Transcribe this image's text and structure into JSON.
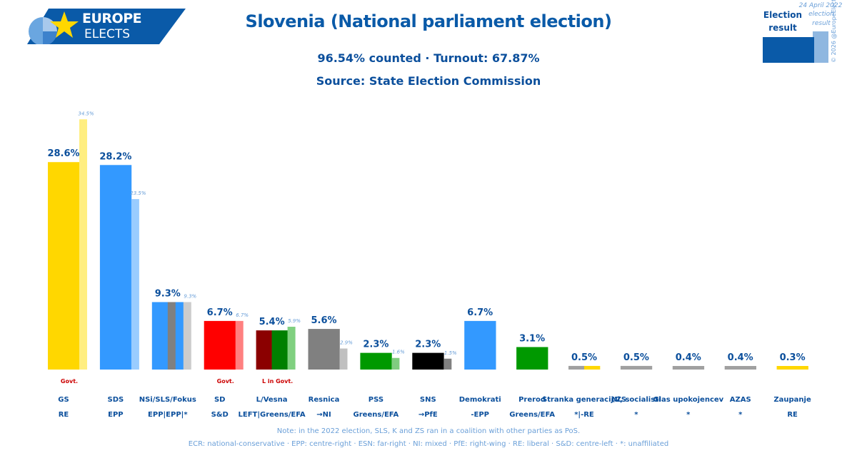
{
  "logo": {
    "line1": "EUROPE",
    "line2": "ELECTS"
  },
  "header": {
    "title": "Slovenia (National parliament election)",
    "subtitle1": "96.54% counted · Turnout: 67.87%",
    "subtitle2": "Source: State Election Commission"
  },
  "legend": {
    "date": "24 April 2022",
    "current_label_1": "Election",
    "current_label_2": "result",
    "previous_label_1": "election",
    "previous_label_2": "result",
    "copyright": "© 2026 @EuropeElects",
    "colors": {
      "current": "#0a5aa8",
      "previous": "#8fb7e0"
    }
  },
  "chart_data": {
    "type": "bar",
    "ylim": [
      0,
      36
    ],
    "categories": [
      "GS",
      "SDS",
      "NSi/SLS/Fokus",
      "SD",
      "L/Vesna",
      "Resnica",
      "PSS",
      "SNS",
      "Demokrati",
      "Prerod",
      "Stranka generacij/ZS",
      "Ni, socialisti",
      "Glas upokojencev",
      "AZAS",
      "Zaupanje"
    ],
    "groups": [
      "RE",
      "EPP",
      "EPP|EPP|*",
      "S&D",
      "LEFT|Greens/EFA",
      "→NI",
      "Greens/EFA",
      "→PfE",
      "-EPP",
      "Greens/EFA",
      "*|-RE",
      "*",
      "*",
      "*",
      "RE"
    ],
    "series": [
      {
        "values": [
          28.6,
          28.2,
          9.3,
          6.7,
          5.4,
          5.6,
          2.3,
          2.3,
          6.7,
          3.1,
          0.5,
          0.5,
          0.4,
          0.4,
          0.3
        ],
        "labels": [
          "28.6%",
          "28.2%",
          "9.3%",
          "6.7%",
          "5.4%",
          "5.6%",
          "2.3%",
          "2.3%",
          "6.7%",
          "3.1%",
          "0.5%",
          "0.5%",
          "0.4%",
          "0.4%",
          "0.3%"
        ]
      },
      {
        "values": [
          34.5,
          23.5,
          9.3,
          6.7,
          5.9,
          2.9,
          1.6,
          1.5,
          null,
          null,
          null,
          null,
          null,
          null,
          null
        ],
        "labels": [
          "34.5%",
          "23.5%",
          "9.3%",
          "6.7%",
          "5.9%",
          "2.9%",
          "1.6%",
          "1.5%",
          "",
          "",
          "",
          "",
          "",
          "",
          ""
        ]
      }
    ],
    "colors": [
      [
        "#ffd700"
      ],
      [
        "#3399ff"
      ],
      [
        "#3399ff",
        "#3399ff",
        "#808080",
        "#3399ff"
      ],
      [
        "#ff0000"
      ],
      [
        "#8b0000",
        "#008000"
      ],
      [
        "#808080"
      ],
      [
        "#009900"
      ],
      [
        "#000000"
      ],
      [
        "#3399ff"
      ],
      [
        "#009900"
      ],
      [
        "#a0a0a0",
        "#ffd700"
      ],
      [
        "#a0a0a0"
      ],
      [
        "#a0a0a0"
      ],
      [
        "#a0a0a0"
      ],
      [
        "#ffd700"
      ]
    ],
    "prev_colors": [
      "#ffee80",
      "#99ccff",
      "#cccccc",
      "#ff8080",
      "#80d080",
      "#c0c0c0",
      "#80cc80",
      "#808080"
    ],
    "govt_labels": [
      "Govt.",
      "",
      "",
      "Govt.",
      "L in Govt.",
      "",
      "",
      "",
      "",
      "",
      "",
      "",
      "",
      "",
      ""
    ],
    "govt_color": "#cc0000"
  },
  "notes": {
    "note1": "Note: in the 2022 election, SLS, K and ZS ran in a coalition with other parties as PoS.",
    "note2": "ECR: national-conservative · EPP: centre-right · ESN: far-right · NI: mixed · PfE: right-wing · RE: liberal · S&D: centre-left · *: unaffiliated"
  }
}
